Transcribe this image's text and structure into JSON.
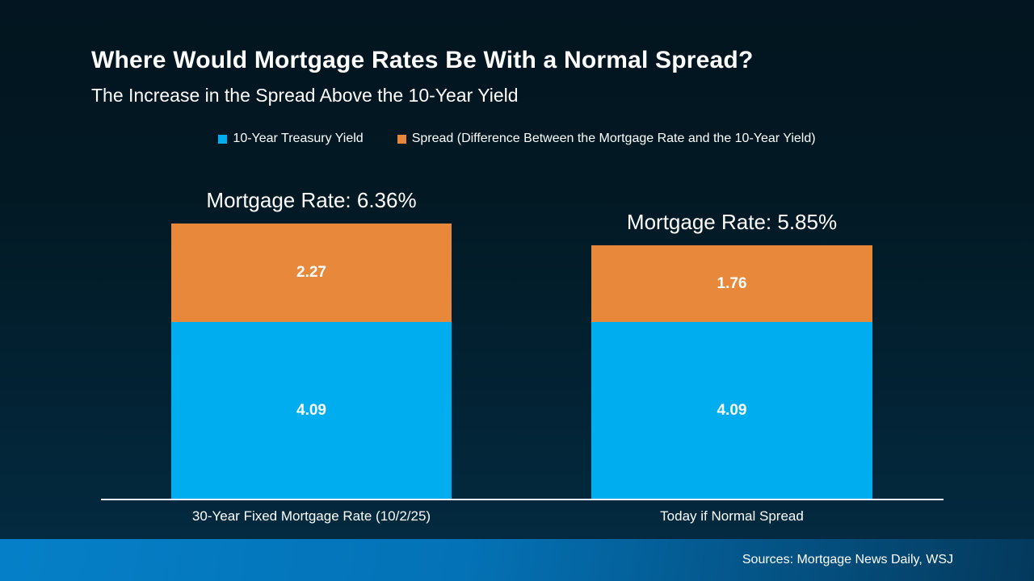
{
  "slide": {
    "title": "Where Would Mortgage Rates Be With a Normal Spread?",
    "subtitle": "The Increase in the Spread Above the 10-Year Yield"
  },
  "legend": {
    "items": [
      {
        "label": "10-Year Treasury Yield",
        "color": "#00AEEF"
      },
      {
        "label": "Spread (Difference Between the Mortgage Rate and the 10-Year Yield)",
        "color": "#E8883A"
      }
    ]
  },
  "chart_data": {
    "type": "bar",
    "stacked": true,
    "title": "Where Would Mortgage Rates Be With a Normal Spread?",
    "subtitle": "The Increase in the Spread Above the 10-Year Yield",
    "categories": [
      "30-Year Fixed Mortgage Rate (10/2/25)",
      "Today if Normal Spread"
    ],
    "series": [
      {
        "name": "10-Year Treasury Yield",
        "color": "#00AEEF",
        "values": [
          4.09,
          4.09
        ]
      },
      {
        "name": "Spread (Difference Between the Mortgage Rate and the 10-Year Yield)",
        "color": "#E8883A",
        "values": [
          2.27,
          1.76
        ]
      }
    ],
    "totals": [
      6.36,
      5.85
    ],
    "total_labels": [
      "Mortgage Rate: 6.36%",
      "Mortgage Rate: 5.85%"
    ],
    "ylim": [
      0,
      6.5
    ],
    "grid": false,
    "legend_position": "top",
    "value_labels_inside": true
  },
  "footer": {
    "sources": "Sources: Mortgage News Daily, WSJ"
  },
  "colors": {
    "background_top": "#021520",
    "background_bottom": "#032A40",
    "footer_left": "#0580C8",
    "footer_right": "#04395C",
    "bar_blue": "#00AEEF",
    "bar_orange": "#E8883A",
    "axis_line": "#F2F4F6",
    "text": "#FFFFFF"
  }
}
